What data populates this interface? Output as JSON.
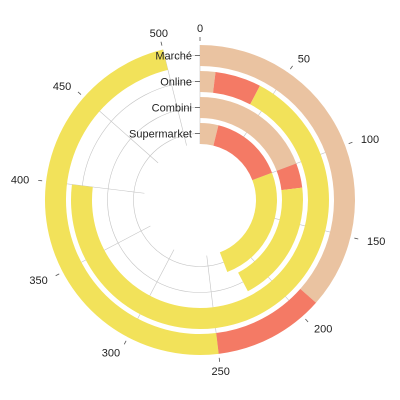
{
  "chart_data": {
    "type": "radial_stacked_bar",
    "title": "",
    "categories": [
      "Marché",
      "Online",
      "Combini",
      "Supermarket"
    ],
    "series": [
      {
        "color": "#eac3a1",
        "values": [
          190,
          10,
          100,
          20
        ]
      },
      {
        "color": "#f47a65",
        "values": [
          60,
          30,
          20,
          80
        ]
      },
      {
        "color": "#f2e25a",
        "values": [
          250,
          360,
          100,
          130
        ]
      }
    ],
    "value_axis": {
      "range": [
        0,
        520
      ],
      "ticks": [
        0,
        50,
        100,
        150,
        200,
        250,
        300,
        350,
        400,
        450,
        500
      ]
    },
    "background_track_color": "#dcdcdc",
    "grid": true
  }
}
